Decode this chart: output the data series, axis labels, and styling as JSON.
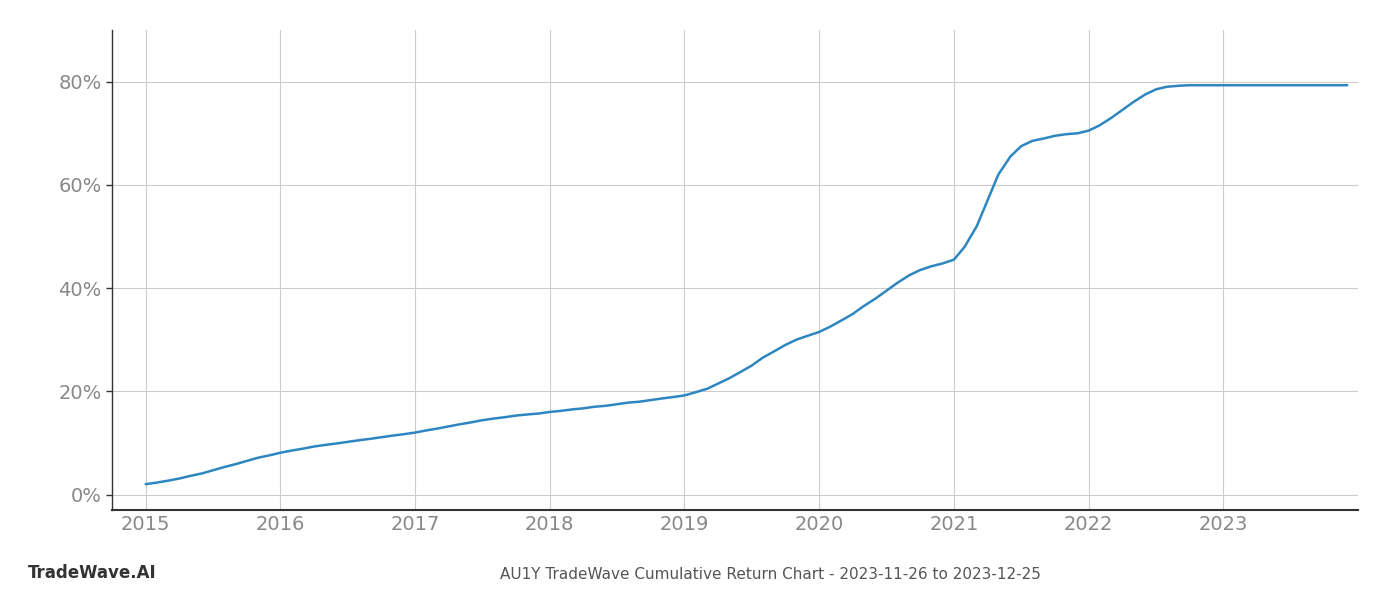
{
  "title": "AU1Y TradeWave Cumulative Return Chart - 2023-11-26 to 2023-12-25",
  "watermark": "TradeWave.AI",
  "line_color": "#2e86c1",
  "line_width": 1.8,
  "background_color": "#ffffff",
  "grid_color": "#cccccc",
  "x_values": [
    2015.0,
    2015.08,
    2015.17,
    2015.25,
    2015.33,
    2015.42,
    2015.5,
    2015.58,
    2015.67,
    2015.75,
    2015.83,
    2015.92,
    2016.0,
    2016.08,
    2016.17,
    2016.25,
    2016.33,
    2016.42,
    2016.5,
    2016.58,
    2016.67,
    2016.75,
    2016.83,
    2016.92,
    2017.0,
    2017.08,
    2017.17,
    2017.25,
    2017.33,
    2017.42,
    2017.5,
    2017.58,
    2017.67,
    2017.75,
    2017.83,
    2017.92,
    2018.0,
    2018.08,
    2018.17,
    2018.25,
    2018.33,
    2018.42,
    2018.5,
    2018.58,
    2018.67,
    2018.75,
    2018.83,
    2018.92,
    2019.0,
    2019.08,
    2019.17,
    2019.25,
    2019.33,
    2019.42,
    2019.5,
    2019.58,
    2019.67,
    2019.75,
    2019.83,
    2019.92,
    2020.0,
    2020.08,
    2020.17,
    2020.25,
    2020.33,
    2020.42,
    2020.5,
    2020.58,
    2020.67,
    2020.75,
    2020.83,
    2020.92,
    2021.0,
    2021.08,
    2021.17,
    2021.25,
    2021.33,
    2021.42,
    2021.5,
    2021.58,
    2021.67,
    2021.75,
    2021.83,
    2021.92,
    2022.0,
    2022.08,
    2022.17,
    2022.25,
    2022.33,
    2022.42,
    2022.5,
    2022.58,
    2022.67,
    2022.75,
    2022.83,
    2022.92,
    2023.0,
    2023.08,
    2023.17,
    2023.25,
    2023.33,
    2023.42,
    2023.5,
    2023.58,
    2023.67,
    2023.75,
    2023.83,
    2023.92
  ],
  "y_values": [
    2.0,
    2.3,
    2.7,
    3.1,
    3.6,
    4.1,
    4.7,
    5.3,
    5.9,
    6.5,
    7.1,
    7.6,
    8.1,
    8.5,
    8.9,
    9.3,
    9.6,
    9.9,
    10.2,
    10.5,
    10.8,
    11.1,
    11.4,
    11.7,
    12.0,
    12.4,
    12.8,
    13.2,
    13.6,
    14.0,
    14.4,
    14.7,
    15.0,
    15.3,
    15.5,
    15.7,
    16.0,
    16.2,
    16.5,
    16.7,
    17.0,
    17.2,
    17.5,
    17.8,
    18.0,
    18.3,
    18.6,
    18.9,
    19.2,
    19.8,
    20.5,
    21.5,
    22.5,
    23.8,
    25.0,
    26.5,
    27.8,
    29.0,
    30.0,
    30.8,
    31.5,
    32.5,
    33.8,
    35.0,
    36.5,
    38.0,
    39.5,
    41.0,
    42.5,
    43.5,
    44.2,
    44.8,
    45.5,
    48.0,
    52.0,
    57.0,
    62.0,
    65.5,
    67.5,
    68.5,
    69.0,
    69.5,
    69.8,
    70.0,
    70.5,
    71.5,
    73.0,
    74.5,
    76.0,
    77.5,
    78.5,
    79.0,
    79.2,
    79.3,
    79.3,
    79.3,
    79.3,
    79.3,
    79.3,
    79.3,
    79.3,
    79.3,
    79.3,
    79.3,
    79.3,
    79.3,
    79.3,
    79.3
  ],
  "xlim": [
    2014.75,
    2024.0
  ],
  "ylim": [
    -3,
    90
  ],
  "yticks": [
    0,
    20,
    40,
    60,
    80
  ],
  "xticks": [
    2015,
    2016,
    2017,
    2018,
    2019,
    2020,
    2021,
    2022,
    2023
  ],
  "tick_label_color": "#888888",
  "tick_label_fontsize": 14,
  "title_fontsize": 11,
  "watermark_fontsize": 12,
  "spine_color": "#333333"
}
